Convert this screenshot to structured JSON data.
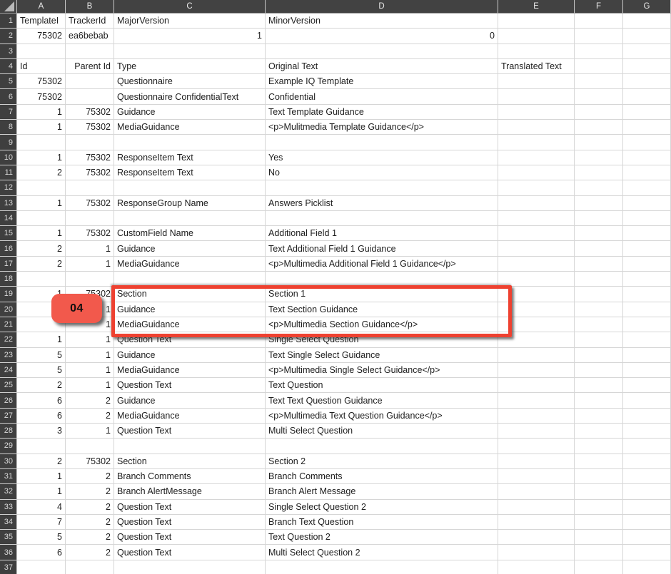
{
  "app": {
    "title": "Spreadsheet - questionnaire template translation export",
    "visible_rows": 37
  },
  "column_headers": [
    "A",
    "B",
    "C",
    "D",
    "E",
    "F",
    "G"
  ],
  "align_overrides": {
    "B4": "right"
  },
  "rows": [
    {
      "n": 1,
      "cells": {
        "A": "TemplateI",
        "B": "TrackerId",
        "C": "MajorVersion",
        "D": "MinorVersion"
      }
    },
    {
      "n": 2,
      "cells": {
        "A": "75302",
        "B": "ea6bebab",
        "C": "1",
        "D": "0"
      }
    },
    {
      "n": 3,
      "cells": {}
    },
    {
      "n": 4,
      "cells": {
        "A": "Id",
        "B": "Parent Id",
        "C": "Type",
        "D": "Original Text",
        "E": "Translated Text"
      }
    },
    {
      "n": 5,
      "cells": {
        "A": "75302",
        "C": "Questionnaire",
        "D": "Example IQ Template"
      }
    },
    {
      "n": 6,
      "cells": {
        "A": "75302",
        "C": "Questionnaire ConfidentialText",
        "D": "Confidential"
      }
    },
    {
      "n": 7,
      "cells": {
        "A": "1",
        "B": "75302",
        "C": "Guidance",
        "D": "Text Template Guidance"
      }
    },
    {
      "n": 8,
      "cells": {
        "A": "1",
        "B": "75302",
        "C": "MediaGuidance",
        "D": "<p>Mulitmedia Template Guidance</p>"
      }
    },
    {
      "n": 9,
      "cells": {}
    },
    {
      "n": 10,
      "cells": {
        "A": "1",
        "B": "75302",
        "C": "ResponseItem Text",
        "D": "Yes"
      }
    },
    {
      "n": 11,
      "cells": {
        "A": "2",
        "B": "75302",
        "C": "ResponseItem Text",
        "D": "No"
      }
    },
    {
      "n": 12,
      "cells": {}
    },
    {
      "n": 13,
      "cells": {
        "A": "1",
        "B": "75302",
        "C": "ResponseGroup Name",
        "D": "Answers Picklist"
      }
    },
    {
      "n": 14,
      "cells": {}
    },
    {
      "n": 15,
      "cells": {
        "A": "1",
        "B": "75302",
        "C": "CustomField Name",
        "D": "Additional Field 1"
      }
    },
    {
      "n": 16,
      "cells": {
        "A": "2",
        "B": "1",
        "C": "Guidance",
        "D": "Text Additional Field 1 Guidance"
      }
    },
    {
      "n": 17,
      "cells": {
        "A": "2",
        "B": "1",
        "C": "MediaGuidance",
        "D": "<p>Multimedia Additional Field 1 Guidance</p>"
      }
    },
    {
      "n": 18,
      "cells": {}
    },
    {
      "n": 19,
      "cells": {
        "A": "1",
        "B": "75302",
        "C": "Section",
        "D": "Section 1"
      }
    },
    {
      "n": 20,
      "cells": {
        "B": "1",
        "C": "Guidance",
        "D": "Text Section Guidance"
      }
    },
    {
      "n": 21,
      "cells": {
        "B": "1",
        "C": "MediaGuidance",
        "D": "<p>Multimedia Section Guidance</p>"
      }
    },
    {
      "n": 22,
      "cells": {
        "A": "1",
        "B": "1",
        "C": "Question Text",
        "D": "Single Select Question"
      }
    },
    {
      "n": 23,
      "cells": {
        "A": "5",
        "B": "1",
        "C": "Guidance",
        "D": "Text Single Select Guidance"
      }
    },
    {
      "n": 24,
      "cells": {
        "A": "5",
        "B": "1",
        "C": "MediaGuidance",
        "D": "<p>Multimedia Single Select Guidance</p>"
      }
    },
    {
      "n": 25,
      "cells": {
        "A": "2",
        "B": "1",
        "C": "Question Text",
        "D": "Text Question"
      }
    },
    {
      "n": 26,
      "cells": {
        "A": "6",
        "B": "2",
        "C": "Guidance",
        "D": "Text Text Question Guidance"
      }
    },
    {
      "n": 27,
      "cells": {
        "A": "6",
        "B": "2",
        "C": "MediaGuidance",
        "D": "<p>Multimedia Text Question Guidance</p>"
      }
    },
    {
      "n": 28,
      "cells": {
        "A": "3",
        "B": "1",
        "C": "Question Text",
        "D": "Multi Select Question"
      }
    },
    {
      "n": 29,
      "cells": {}
    },
    {
      "n": 30,
      "cells": {
        "A": "2",
        "B": "75302",
        "C": "Section",
        "D": "Section 2"
      }
    },
    {
      "n": 31,
      "cells": {
        "A": "1",
        "B": "2",
        "C": "Branch Comments",
        "D": "Branch Comments"
      }
    },
    {
      "n": 32,
      "cells": {
        "A": "1",
        "B": "2",
        "C": "Branch AlertMessage",
        "D": "Branch Alert Message"
      }
    },
    {
      "n": 33,
      "cells": {
        "A": "4",
        "B": "2",
        "C": "Question Text",
        "D": "Single Select Question 2"
      }
    },
    {
      "n": 34,
      "cells": {
        "A": "7",
        "B": "2",
        "C": "Question Text",
        "D": "Branch Text Question"
      }
    },
    {
      "n": 35,
      "cells": {
        "A": "5",
        "B": "2",
        "C": "Question Text",
        "D": "Text Question 2"
      }
    },
    {
      "n": 36,
      "cells": {
        "A": "6",
        "B": "2",
        "C": "Question Text",
        "D": "Multi Select Question 2"
      }
    },
    {
      "n": 37,
      "cells": {}
    }
  ],
  "annotations": {
    "badge_label": "04",
    "badge_color": "#f2594c",
    "box_color": "#ee4130",
    "highlighted_rows": "19-21"
  },
  "colors": {
    "header_bg": "#424242",
    "header_fg": "#e9e9e9",
    "gutter_bg": "#3f3f3f",
    "gutter_fg": "#d9d9d9",
    "gridline": "#d6d6d6"
  }
}
